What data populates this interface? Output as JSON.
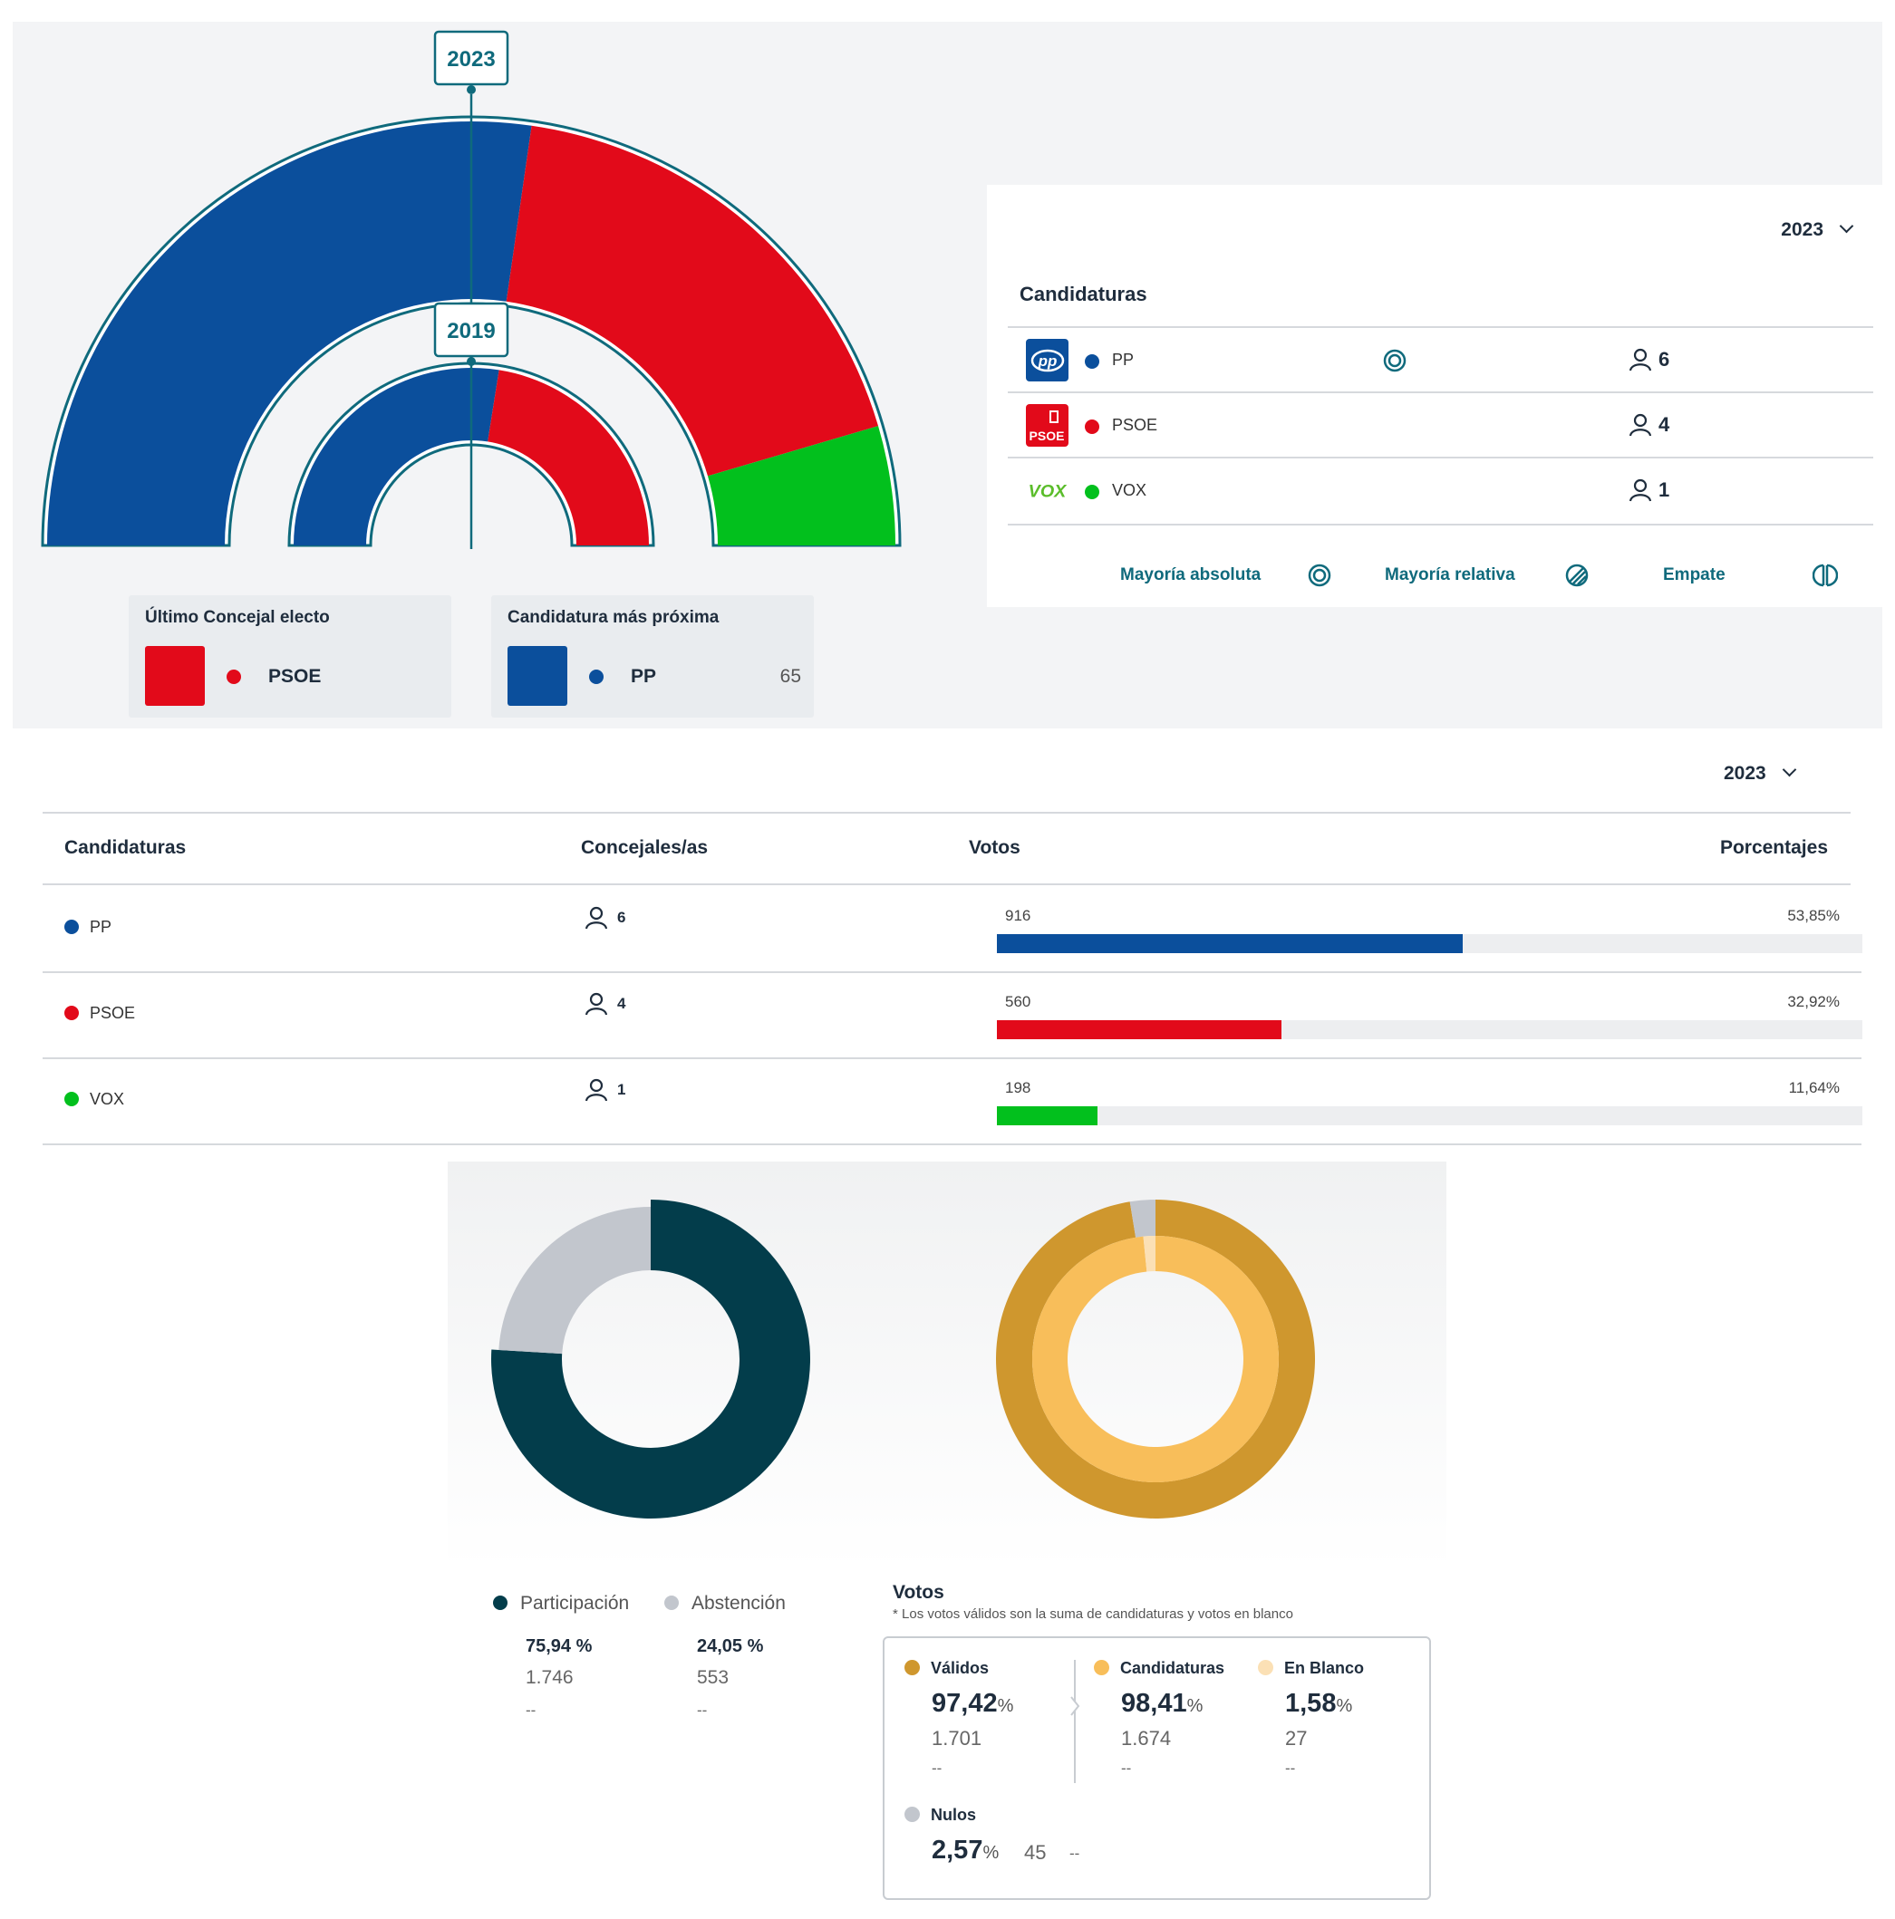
{
  "hemicycle": {
    "outer_year": "2023",
    "inner_year": "2019",
    "colors": {
      "PP": "#0b4f9c",
      "PSOE": "#e20a1a",
      "VOX": "#02c01d"
    }
  },
  "last_elected": {
    "title": "Último Concejal electo",
    "party": "PSOE",
    "color": "#e20a1a"
  },
  "closest": {
    "title": "Candidatura más próxima",
    "party": "PP",
    "value": "65",
    "color": "#0b4f9c"
  },
  "candidaturas_panel": {
    "year": "2023",
    "title": "Candidaturas",
    "rows": [
      {
        "party": "PP",
        "seats": "6",
        "majority": "absoluta",
        "logo": "pp-logo",
        "color": "#0b4f9c"
      },
      {
        "party": "PSOE",
        "seats": "4",
        "logo": "psoe-logo",
        "color": "#e20a1a"
      },
      {
        "party": "VOX",
        "seats": "1",
        "logo": "vox-logo",
        "color": "#02c01d"
      }
    ],
    "legend": {
      "absolute": "Mayoría absoluta",
      "relative": "Mayoría relativa",
      "tie": "Empate"
    }
  },
  "votes_table": {
    "year": "2023",
    "headers": {
      "candidaturas": "Candidaturas",
      "concejales": "Concejales/as",
      "votos": "Votos",
      "porcentajes": "Porcentajes"
    },
    "rows": [
      {
        "party": "PP",
        "seats": "6",
        "votes": "916",
        "percent": "53,85%",
        "share": 0.5385,
        "color": "#0b4f9c"
      },
      {
        "party": "PSOE",
        "seats": "4",
        "votes": "560",
        "percent": "32,92%",
        "share": 0.3292,
        "color": "#e20a1a"
      },
      {
        "party": "VOX",
        "seats": "1",
        "votes": "198",
        "percent": "11,64%",
        "share": 0.1164,
        "color": "#02c01d"
      }
    ]
  },
  "participation": {
    "participacion": {
      "label": "Participación",
      "percent": "75,94 %",
      "count": "1.746",
      "delta": "--",
      "color": "#033d4b"
    },
    "abstencion": {
      "label": "Abstención",
      "percent": "24,05 %",
      "count": "553",
      "delta": "--",
      "color": "#c2c6cd"
    }
  },
  "votos": {
    "title": "Votos",
    "note": "* Los votos válidos son la suma de candidaturas y votos en blanco",
    "validos": {
      "label": "Válidos",
      "percent": "97,42",
      "count": "1.701",
      "delta": "--",
      "color": "#cf972e"
    },
    "candidaturas": {
      "label": "Candidaturas",
      "percent": "98,41",
      "count": "1.674",
      "delta": "--",
      "color": "#f8be5a"
    },
    "en_blanco": {
      "label": "En Blanco",
      "percent": "1,58",
      "count": "27",
      "delta": "--",
      "color": "#fbe0b5"
    },
    "nulos": {
      "label": "Nulos",
      "percent": "2,57",
      "count": "45",
      "delta": "--",
      "color": "#c2c6cd"
    },
    "unit": "%"
  },
  "chart_data": [
    {
      "type": "hemicycle",
      "series": [
        {
          "name": "2023",
          "categories": [
            "PP",
            "PSOE",
            "VOX"
          ],
          "values": [
            6,
            4,
            1
          ]
        },
        {
          "name": "2019",
          "categories": [
            "PP",
            "PSOE"
          ],
          "values": [
            0.55,
            0.45
          ]
        }
      ]
    },
    {
      "type": "bar",
      "categories": [
        "PP",
        "PSOE",
        "VOX"
      ],
      "values": [
        916,
        560,
        198
      ],
      "labels": [
        "53,85%",
        "32,92%",
        "11,64%"
      ]
    },
    {
      "type": "pie",
      "categories": [
        "Participación",
        "Abstención"
      ],
      "values": [
        75.94,
        24.05
      ]
    },
    {
      "type": "pie",
      "categories": [
        "Válidos",
        "Nulos",
        "Candidaturas",
        "En Blanco"
      ],
      "values": [
        97.42,
        2.57,
        98.41,
        1.58
      ]
    }
  ]
}
